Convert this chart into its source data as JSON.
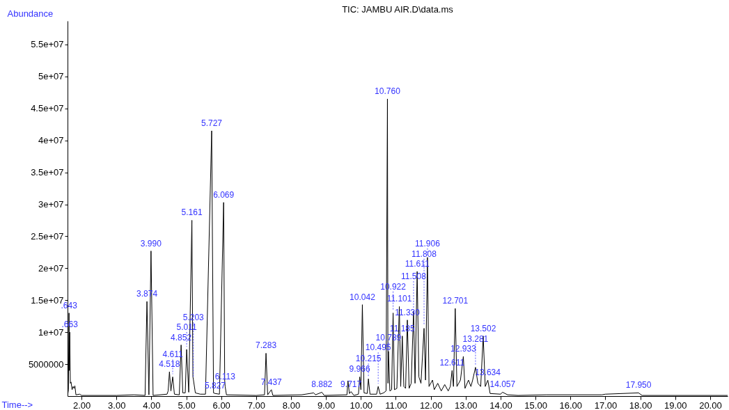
{
  "chart_data": {
    "type": "line",
    "title": "TIC: JAMBU AIR.D\\data.ms",
    "xlabel": "Time-->",
    "ylabel": "Abundance",
    "xlim": [
      1.6,
      20.5
    ],
    "ylim": [
      0,
      58700000
    ],
    "xticks": [
      {
        "value": 2,
        "label": "2.00"
      },
      {
        "value": 3,
        "label": "3.00"
      },
      {
        "value": 4,
        "label": "4.00"
      },
      {
        "value": 5,
        "label": "5.00"
      },
      {
        "value": 6,
        "label": "6.00"
      },
      {
        "value": 7,
        "label": "7.00"
      },
      {
        "value": 8,
        "label": "8.00"
      },
      {
        "value": 9,
        "label": "9.00"
      },
      {
        "value": 10,
        "label": "10.00"
      },
      {
        "value": 11,
        "label": "11.00"
      },
      {
        "value": 12,
        "label": "12.00"
      },
      {
        "value": 13,
        "label": "13.00"
      },
      {
        "value": 14,
        "label": "14.00"
      },
      {
        "value": 15,
        "label": "15.00"
      },
      {
        "value": 16,
        "label": "16.00"
      },
      {
        "value": 17,
        "label": "17.00"
      },
      {
        "value": 18,
        "label": "18.00"
      },
      {
        "value": 19,
        "label": "19.00"
      },
      {
        "value": 20,
        "label": "20.00"
      }
    ],
    "yticks": [
      {
        "value": 5000000,
        "label": "5000000"
      },
      {
        "value": 10000000,
        "label": "1e+07"
      },
      {
        "value": 15000000,
        "label": "1.5e+07"
      },
      {
        "value": 20000000,
        "label": "2e+07"
      },
      {
        "value": 25000000,
        "label": "2.5e+07"
      },
      {
        "value": 30000000,
        "label": "3e+07"
      },
      {
        "value": 35000000,
        "label": "3.5e+07"
      },
      {
        "value": 40000000,
        "label": "4e+07"
      },
      {
        "value": 45000000,
        "label": "4.5e+07"
      },
      {
        "value": 50000000,
        "label": "5e+07"
      },
      {
        "value": 55000000,
        "label": "5.5e+07"
      }
    ],
    "grid": false,
    "x": [
      1.6,
      1.625,
      1.643,
      1.653,
      1.663,
      1.68,
      1.7,
      1.73,
      1.76,
      1.79,
      1.81,
      1.84,
      1.95,
      2.0,
      3.0,
      3.5,
      3.82,
      3.874,
      3.93,
      3.99,
      4.05,
      4.45,
      4.48,
      4.518,
      4.56,
      4.611,
      4.66,
      4.8,
      4.852,
      4.9,
      4.97,
      5.011,
      5.07,
      5.161,
      5.19,
      5.203,
      5.26,
      5.4,
      5.55,
      5.727,
      5.78,
      5.827,
      5.95,
      6.069,
      6.1,
      6.113,
      6.15,
      7.0,
      7.24,
      7.283,
      7.33,
      7.437,
      7.48,
      8.3,
      8.65,
      8.7,
      8.882,
      8.95,
      9.6,
      9.63,
      9.67,
      9.717,
      9.8,
      9.93,
      9.966,
      10.0,
      10.042,
      10.09,
      10.18,
      10.215,
      10.26,
      10.45,
      10.495,
      10.55,
      10.65,
      10.72,
      10.76,
      10.775,
      10.789,
      10.83,
      10.88,
      10.922,
      10.96,
      11.03,
      11.101,
      11.14,
      11.185,
      11.23,
      11.28,
      11.33,
      11.38,
      11.44,
      11.508,
      11.55,
      11.611,
      11.66,
      11.72,
      11.808,
      11.85,
      11.906,
      11.95,
      12.05,
      12.1,
      12.2,
      12.3,
      12.4,
      12.5,
      12.56,
      12.611,
      12.65,
      12.701,
      12.75,
      12.85,
      12.933,
      12.98,
      13.08,
      13.15,
      13.2,
      13.281,
      13.35,
      13.43,
      13.502,
      13.56,
      13.634,
      13.7,
      14.0,
      14.057,
      14.2,
      14.5,
      15.3,
      16.9,
      17.0,
      17.95,
      18.05,
      20.5
    ],
    "series": [
      {
        "color": "#000000",
        "values": [
          0,
          1000000,
          13000000,
          4000000,
          10000000,
          2000000,
          2200000,
          1000000,
          1500000,
          1200000,
          1600000,
          200000,
          300000,
          100000,
          100000,
          200000,
          100000,
          14800000,
          200000,
          22700000,
          100000,
          300000,
          800000,
          3800000,
          800000,
          3000000,
          300000,
          200000,
          8000000,
          500000,
          500000,
          7300000,
          600000,
          27500000,
          3000000,
          2600000,
          500000,
          300000,
          300000,
          41500000,
          500000,
          400000,
          300000,
          30300000,
          2500000,
          1500000,
          200000,
          100000,
          200000,
          6700000,
          200000,
          1000000,
          100000,
          200000,
          500000,
          200000,
          600000,
          100000,
          200000,
          2400000,
          400000,
          700000,
          100000,
          300000,
          3000000,
          1000000,
          14300000,
          500000,
          400000,
          2700000,
          300000,
          300000,
          1500000,
          300000,
          500000,
          800000,
          46500000,
          2000000,
          7000000,
          800000,
          1000000,
          13000000,
          1000000,
          1200000,
          14000000,
          1500000,
          9400000,
          1500000,
          1200000,
          11900000,
          1200000,
          2000000,
          13300000,
          2000000,
          19500000,
          3000000,
          2000000,
          10600000,
          2500000,
          21700000,
          1500000,
          2500000,
          1000000,
          2000000,
          800000,
          1800000,
          800000,
          1500000,
          4000000,
          1500000,
          13700000,
          1500000,
          2500000,
          6200000,
          1200000,
          2500000,
          1500000,
          2500000,
          4500000,
          2000000,
          1500000,
          9400000,
          1500000,
          2500000,
          400000,
          300000,
          600000,
          200000,
          100000,
          200000,
          200000,
          300000,
          500000,
          100000,
          100000
        ]
      }
    ],
    "annotations": [
      {
        "text": ".643",
        "x": 1.643,
        "y": 13000000
      },
      {
        "text": ".663",
        "x": 1.663,
        "y": 10000000
      },
      {
        "text": "3.874",
        "x": 3.874,
        "y": 14800000
      },
      {
        "text": "3.990",
        "x": 3.99,
        "y": 22700000
      },
      {
        "text": "4.518",
        "x": 4.518,
        "y": 3800000
      },
      {
        "text": "4.611",
        "x": 4.611,
        "y": 3000000
      },
      {
        "text": "4.852",
        "x": 4.852,
        "y": 8000000
      },
      {
        "text": "5.011",
        "x": 5.011,
        "y": 7300000
      },
      {
        "text": "5.161",
        "x": 5.161,
        "y": 27500000
      },
      {
        "text": "5.203",
        "x": 5.203,
        "y": 2600000
      },
      {
        "text": "5.727",
        "x": 5.727,
        "y": 41500000
      },
      {
        "text": "5.827",
        "x": 5.827,
        "y": 400000
      },
      {
        "text": "6.069",
        "x": 6.069,
        "y": 30300000
      },
      {
        "text": "6.113",
        "x": 6.113,
        "y": 1500000
      },
      {
        "text": "7.283",
        "x": 7.283,
        "y": 6700000
      },
      {
        "text": "7.437",
        "x": 7.437,
        "y": 1000000
      },
      {
        "text": "8.882",
        "x": 8.882,
        "y": 600000
      },
      {
        "text": "9.717",
        "x": 9.717,
        "y": 700000
      },
      {
        "text": "9.966",
        "x": 9.966,
        "y": 3000000
      },
      {
        "text": "10.042",
        "x": 10.042,
        "y": 14300000
      },
      {
        "text": "10.215",
        "x": 10.215,
        "y": 2700000
      },
      {
        "text": "10.495",
        "x": 10.495,
        "y": 1500000
      },
      {
        "text": "10.760",
        "x": 10.76,
        "y": 46500000
      },
      {
        "text": "10.789",
        "x": 10.789,
        "y": 7000000
      },
      {
        "text": "10.922",
        "x": 10.922,
        "y": 13000000
      },
      {
        "text": "11.101",
        "x": 11.101,
        "y": 14000000
      },
      {
        "text": "11.185",
        "x": 11.185,
        "y": 9400000
      },
      {
        "text": "11.330",
        "x": 11.33,
        "y": 11900000
      },
      {
        "text": "11.508",
        "x": 11.508,
        "y": 13300000
      },
      {
        "text": "11.611",
        "x": 11.611,
        "y": 19500000
      },
      {
        "text": "11.808",
        "x": 11.808,
        "y": 10600000
      },
      {
        "text": "11.906",
        "x": 11.906,
        "y": 21700000
      },
      {
        "text": "12.611",
        "x": 12.611,
        "y": 4000000
      },
      {
        "text": "12.701",
        "x": 12.701,
        "y": 13700000
      },
      {
        "text": "12.933",
        "x": 12.933,
        "y": 6200000
      },
      {
        "text": "13.281",
        "x": 13.281,
        "y": 4500000
      },
      {
        "text": "13.502",
        "x": 13.502,
        "y": 9400000
      },
      {
        "text": "13.634",
        "x": 13.634,
        "y": 2500000
      },
      {
        "text": "14.057",
        "x": 14.057,
        "y": 600000
      },
      {
        "text": "17.950",
        "x": 17.95,
        "y": 500000
      }
    ]
  }
}
